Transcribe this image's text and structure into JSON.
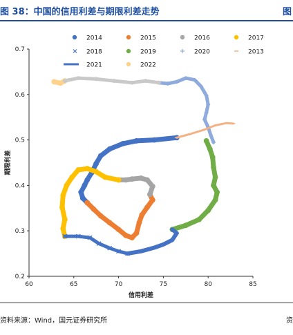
{
  "header": {
    "title": "图 38：中国的信用利差与期限利差走势",
    "next_title_fragment": "图"
  },
  "footer": {
    "source": "资料来源：Wind，国元证券研究所",
    "right_fragment": "资"
  },
  "chart_data": {
    "type": "line",
    "title": "",
    "xlabel": "信用利差",
    "ylabel": "期限利差",
    "xlim": [
      60,
      85
    ],
    "ylim": [
      0.2,
      0.7
    ],
    "xticks": [
      60,
      65,
      70,
      75,
      80,
      85
    ],
    "yticks": [
      0.2,
      0.3,
      0.4,
      0.5,
      0.6,
      0.7
    ],
    "grid": false,
    "legend_position": "top",
    "series": [
      {
        "name": "2014",
        "color": "#4472c4",
        "marker": "dot",
        "width": 7,
        "points": [
          [
            76.5,
            0.505
          ],
          [
            74.0,
            0.5
          ],
          [
            72.0,
            0.498
          ],
          [
            70.5,
            0.492
          ],
          [
            69.0,
            0.48
          ],
          [
            68.0,
            0.465
          ],
          [
            67.5,
            0.448
          ],
          [
            67.0,
            0.428
          ],
          [
            66.5,
            0.412
          ],
          [
            66.2,
            0.4
          ],
          [
            65.8,
            0.385
          ],
          [
            66.0,
            0.372
          ],
          [
            66.5,
            0.362
          ]
        ]
      },
      {
        "name": "2015",
        "color": "#ed7d31",
        "marker": "dot",
        "width": 7,
        "points": [
          [
            66.5,
            0.362
          ],
          [
            67.2,
            0.348
          ],
          [
            68.0,
            0.333
          ],
          [
            69.0,
            0.318
          ],
          [
            70.0,
            0.303
          ],
          [
            70.8,
            0.29
          ],
          [
            71.5,
            0.285
          ],
          [
            72.0,
            0.295
          ],
          [
            72.3,
            0.318
          ],
          [
            72.6,
            0.335
          ],
          [
            73.2,
            0.352
          ],
          [
            73.8,
            0.368
          ],
          [
            73.5,
            0.38
          ]
        ]
      },
      {
        "name": "2016",
        "color": "#a5a5a5",
        "marker": "dot",
        "width": 7,
        "points": [
          [
            73.5,
            0.38
          ],
          [
            73.8,
            0.398
          ],
          [
            73.2,
            0.412
          ],
          [
            72.5,
            0.416
          ],
          [
            71.5,
            0.414
          ],
          [
            70.8,
            0.412
          ],
          [
            70.0,
            0.412
          ]
        ]
      },
      {
        "name": "2017",
        "color": "#ffc000",
        "marker": "dot",
        "width": 7,
        "points": [
          [
            70.0,
            0.412
          ],
          [
            68.5,
            0.418
          ],
          [
            67.5,
            0.43
          ],
          [
            66.5,
            0.437
          ],
          [
            65.5,
            0.434
          ],
          [
            64.8,
            0.418
          ],
          [
            64.2,
            0.4
          ],
          [
            63.8,
            0.378
          ],
          [
            63.7,
            0.352
          ],
          [
            64.0,
            0.325
          ],
          [
            63.8,
            0.305
          ],
          [
            64.0,
            0.288
          ]
        ]
      },
      {
        "name": "2018",
        "color": "#4472c4",
        "marker": "x",
        "width": 5,
        "points": [
          [
            64.0,
            0.288
          ],
          [
            65.5,
            0.288
          ],
          [
            66.8,
            0.285
          ],
          [
            67.8,
            0.272
          ],
          [
            69.0,
            0.262
          ],
          [
            70.0,
            0.255
          ],
          [
            71.0,
            0.25
          ]
        ]
      },
      {
        "name": "2019",
        "color": "#70ad47",
        "marker": "dot",
        "width": 7,
        "points": [
          [
            76.0,
            0.303
          ],
          [
            77.5,
            0.312
          ],
          [
            79.0,
            0.325
          ],
          [
            80.0,
            0.345
          ],
          [
            80.8,
            0.368
          ],
          [
            81.0,
            0.385
          ],
          [
            80.6,
            0.4
          ],
          [
            80.8,
            0.418
          ],
          [
            80.6,
            0.44
          ],
          [
            80.5,
            0.462
          ],
          [
            80.2,
            0.48
          ],
          [
            79.8,
            0.498
          ]
        ]
      },
      {
        "name": "2020",
        "color": "#8faadc",
        "marker": "plus",
        "width": 5,
        "points": [
          [
            80.6,
            0.495
          ],
          [
            80.3,
            0.51
          ],
          [
            80.0,
            0.528
          ],
          [
            79.6,
            0.545
          ],
          [
            79.8,
            0.56
          ],
          [
            80.0,
            0.578
          ],
          [
            79.8,
            0.598
          ],
          [
            79.2,
            0.618
          ],
          [
            78.5,
            0.632
          ],
          [
            77.5,
            0.636
          ],
          [
            76.5,
            0.628
          ],
          [
            75.5,
            0.624
          ],
          [
            74.5,
            0.626
          ]
        ]
      },
      {
        "name": "2013",
        "color": "#f4b183",
        "marker": "dash",
        "width": 3,
        "points": [
          [
            76.5,
            0.505
          ],
          [
            78.0,
            0.513
          ],
          [
            79.5,
            0.522
          ],
          [
            80.8,
            0.532
          ],
          [
            82.0,
            0.537
          ],
          [
            82.8,
            0.536
          ]
        ]
      },
      {
        "name": "2021",
        "color": "#4472c4",
        "marker": "dash",
        "width": 6,
        "points": [
          [
            71.0,
            0.25
          ],
          [
            72.5,
            0.255
          ],
          [
            74.0,
            0.263
          ],
          [
            75.0,
            0.27
          ],
          [
            76.0,
            0.28
          ],
          [
            76.5,
            0.295
          ],
          [
            76.0,
            0.303
          ]
        ]
      },
      {
        "name": "2022",
        "color": "#ffd28c",
        "marker": "dot",
        "width": 7,
        "points": [
          [
            62.8,
            0.628
          ],
          [
            63.5,
            0.625
          ],
          [
            64.0,
            0.63
          ]
        ]
      },
      {
        "name": "",
        "color": "#c9c9c9",
        "marker": "dot",
        "width": 5,
        "points": [
          [
            64.0,
            0.63
          ],
          [
            65.5,
            0.636
          ],
          [
            67.5,
            0.634
          ],
          [
            69.5,
            0.63
          ],
          [
            71.5,
            0.626
          ],
          [
            73.0,
            0.63
          ],
          [
            74.5,
            0.626
          ]
        ]
      }
    ],
    "legend": [
      {
        "label": "2014",
        "color": "#4472c4",
        "marker": "dot"
      },
      {
        "label": "2015",
        "color": "#ed7d31",
        "marker": "dot"
      },
      {
        "label": "2016",
        "color": "#a5a5a5",
        "marker": "dot"
      },
      {
        "label": "2017",
        "color": "#ffc000",
        "marker": "dot"
      },
      {
        "label": "2018",
        "color": "#4472c4",
        "marker": "x"
      },
      {
        "label": "2019",
        "color": "#70ad47",
        "marker": "dot"
      },
      {
        "label": "2020",
        "color": "#8faadc",
        "marker": "plus"
      },
      {
        "label": "2013",
        "color": "#f4b183",
        "marker": "dash"
      },
      {
        "label": "2021",
        "color": "#4472c4",
        "marker": "line"
      },
      {
        "label": "2022",
        "color": "#ffd28c",
        "marker": "dot"
      }
    ]
  }
}
